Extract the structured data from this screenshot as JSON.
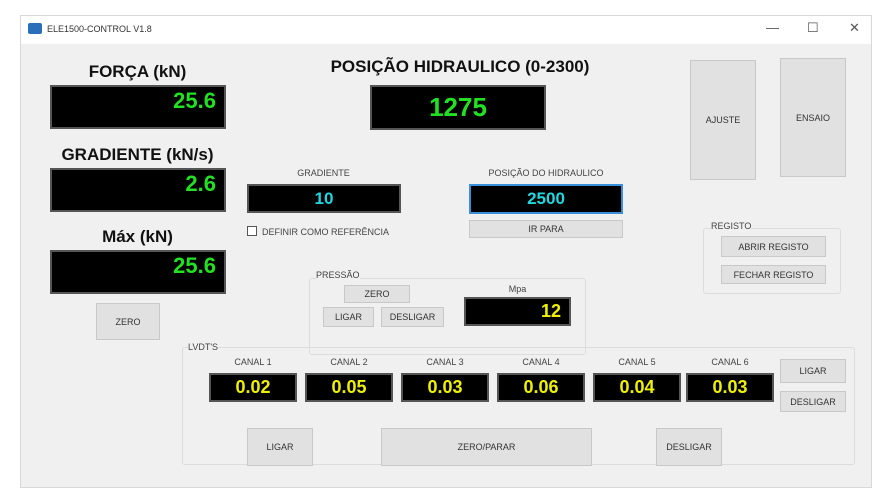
{
  "window": {
    "title": "ELE1500-CONTROL V1.8",
    "minimize": "—",
    "maximize": "☐",
    "close": "✕"
  },
  "forca": {
    "label": "FORÇA (kN)",
    "value": "25.6"
  },
  "gradiente": {
    "label": "GRADIENTE (kN/s)",
    "value": "2.6"
  },
  "max": {
    "label": "Máx (kN)",
    "value": "25.6"
  },
  "zero_button": "ZERO",
  "posicao": {
    "label": "POSIÇÃO HIDRAULICO (0-2300)",
    "value": "1275"
  },
  "gradiente_input": {
    "label": "GRADIENTE",
    "value": "10"
  },
  "referencia_checkbox": {
    "label": "DEFINIR COMO REFERÊNCIA",
    "checked": false
  },
  "posicao_input": {
    "label": "POSIÇÃO DO HIDRAULICO",
    "value": "2500",
    "button": "IR PARA"
  },
  "ajuste": "AJUSTE",
  "ensaio": "ENSAIO",
  "registo": {
    "label": "REGISTO",
    "abrir": "ABRIR REGISTO",
    "fechar": "FECHAR REGISTO"
  },
  "pressao": {
    "label": "PRESSÃO",
    "zero": "ZERO",
    "ligar": "LIGAR",
    "desligar": "DESLIGAR",
    "unit": "Mpa",
    "value": "12"
  },
  "lvdts": {
    "label": "LVDT'S",
    "ligar": "LIGAR",
    "desligar": "DESLIGAR",
    "channels": [
      {
        "label": "CANAL 1",
        "value": "0.02"
      },
      {
        "label": "CANAL 2",
        "value": "0.05"
      },
      {
        "label": "CANAL 3",
        "value": "0.03"
      },
      {
        "label": "CANAL 4",
        "value": "0.06"
      },
      {
        "label": "CANAL 5",
        "value": "0.04"
      },
      {
        "label": "CANAL 6",
        "value": "0.03"
      }
    ]
  },
  "bottom": {
    "ligar": "LIGAR",
    "zero_parar": "ZERO/PARAR",
    "desligar": "DESLIGAR"
  }
}
